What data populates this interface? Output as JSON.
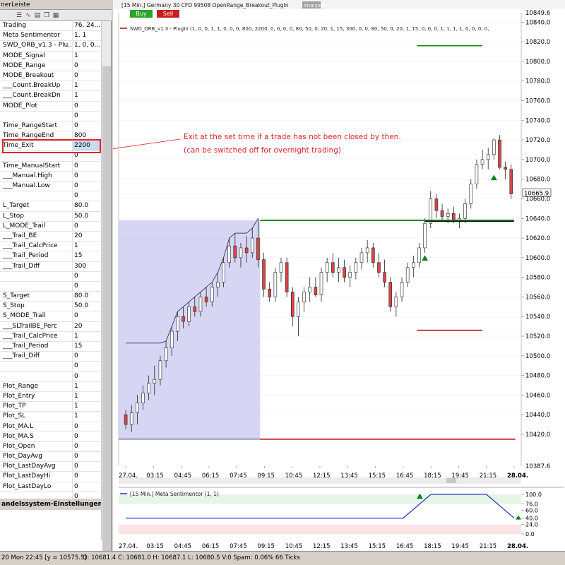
{
  "panel": {
    "title": "nerLeiste",
    "params": [
      {
        "k": "Trading",
        "v": "76, 24..."
      },
      {
        "k": "Meta Sentimentor",
        "v": "1, 1"
      },
      {
        "k": "SWD_ORB_v1.3 - Plu...",
        "v": "1, 0, 0..."
      },
      {
        "k": "MODE_Signal",
        "v": "1"
      },
      {
        "k": "MODE_Range",
        "v": "0"
      },
      {
        "k": "MODE_Breakout",
        "v": "0"
      },
      {
        "k": "___Count.BreakUp",
        "v": "1"
      },
      {
        "k": "___Count.BreakDn",
        "v": "1"
      },
      {
        "k": "MODE_Plot",
        "v": "0"
      },
      {
        "k": "",
        "v": "0"
      },
      {
        "k": "Time_RangeStart",
        "v": "0"
      },
      {
        "k": "Time_RangeEnd",
        "v": "800"
      },
      {
        "k": "Time_Exit",
        "v": "2200",
        "hl": true
      },
      {
        "k": "",
        "v": "0"
      },
      {
        "k": "Time_ManualStart",
        "v": "0"
      },
      {
        "k": "___Manual.High",
        "v": "0"
      },
      {
        "k": "___Manual.Low",
        "v": "0"
      },
      {
        "k": "",
        "v": "0"
      },
      {
        "k": "L_Target",
        "v": "80.0"
      },
      {
        "k": "L_Stop",
        "v": "50.0"
      },
      {
        "k": "L_MODE_Trail",
        "v": "0"
      },
      {
        "k": "___Trail_BE",
        "v": "20"
      },
      {
        "k": "___Trail_CalcPrice",
        "v": "1"
      },
      {
        "k": "___Trail_Period",
        "v": "15"
      },
      {
        "k": "___Trail_Diff",
        "v": "300"
      },
      {
        "k": "",
        "v": "0"
      },
      {
        "k": "",
        "v": "0"
      },
      {
        "k": "S_Target",
        "v": "80.0"
      },
      {
        "k": "S_Stop",
        "v": "50.0"
      },
      {
        "k": "S_MODE_Trail",
        "v": "0"
      },
      {
        "k": "___SLTrailBE_Perc",
        "v": "20"
      },
      {
        "k": "___Trail_CalcPrice",
        "v": "1"
      },
      {
        "k": "___Trail_Period",
        "v": "15"
      },
      {
        "k": "___Trail_Diff",
        "v": "0"
      },
      {
        "k": "",
        "v": "0"
      },
      {
        "k": "",
        "v": "0"
      },
      {
        "k": "Plot_Range",
        "v": "1"
      },
      {
        "k": "Plot_Entry",
        "v": "1"
      },
      {
        "k": "Plot_TP",
        "v": "1"
      },
      {
        "k": "Plot_SL",
        "v": "1"
      },
      {
        "k": "Plot_MA.L",
        "v": "0"
      },
      {
        "k": "Plot_MA.S",
        "v": "0"
      },
      {
        "k": "Plot_Open",
        "v": "0"
      },
      {
        "k": "Plot_DayAvg",
        "v": "0"
      },
      {
        "k": "Plot_LastDayAvg",
        "v": "0"
      },
      {
        "k": "Plot_LastDayHi",
        "v": "0"
      },
      {
        "k": "Plot_LastDayLo",
        "v": "0"
      },
      {
        "k": "",
        "v": "0"
      }
    ],
    "footer": "andelssystem-Einstellungen"
  },
  "chart_header": {
    "title": "[15 Min.] Germany 30 CFD   99508 OpenRange_Breakout_PlugIn",
    "analysen": "Analysen",
    "buy": "Buy",
    "sell": "Sell",
    "indicator": "SWD_ORB_v1.3 - PlugIn  (1, 0, 0, 1, 1, 0, 0, 0, 800, 2200, 0, 0, 0, 0, 80, 50, 0, 20, 1, 15, 300, 0, 0, 80, 50, 0, 20, 1, 15, 0, 0, 0, 1, 1, 1, 1, 0, 0, 0, 0,"
  },
  "annotation": {
    "line1": "Exit at the set time if a trade has not been closed by then.",
    "line2": "(can be switched off for overnight trading)"
  },
  "colors": {
    "bull": "#ffffff",
    "bear": "#d94545",
    "range_fill": "#c8c8f0",
    "green": "#0a8a0a",
    "red": "#b00000",
    "annotation": "#e0202a"
  },
  "chart_data": [
    {
      "type": "candlestick",
      "yticks": [
        10420,
        10440,
        10460,
        10480,
        10500,
        10520,
        10540,
        10560,
        10580,
        10600,
        10620,
        10640,
        10660,
        10680,
        10700,
        10720,
        10740,
        10760,
        10780,
        10800,
        10820,
        10840
      ],
      "ylim": [
        10387.6,
        10849.6
      ],
      "top_label": "10849.6",
      "bottom_label": "10387.6",
      "last_price": "10665.9",
      "xticks": [
        "27.04.",
        "03:15",
        "04:45",
        "06:15",
        "07:45",
        "09:15",
        "10:45",
        "12:15",
        "13:45",
        "15:15",
        "16:45",
        "18:15",
        "19:45",
        "21:15",
        "28.04."
      ],
      "candles": [
        [
          10440,
          10445,
          10425,
          10430
        ],
        [
          10430,
          10450,
          10422,
          10442
        ],
        [
          10442,
          10460,
          10430,
          10452
        ],
        [
          10452,
          10470,
          10445,
          10462
        ],
        [
          10462,
          10480,
          10455,
          10472
        ],
        [
          10472,
          10490,
          10460,
          10476
        ],
        [
          10476,
          10500,
          10470,
          10495
        ],
        [
          10495,
          10515,
          10488,
          10508
        ],
        [
          10508,
          10530,
          10500,
          10525
        ],
        [
          10525,
          10545,
          10515,
          10540
        ],
        [
          10540,
          10550,
          10528,
          10535
        ],
        [
          10535,
          10555,
          10530,
          10550
        ],
        [
          10550,
          10560,
          10540,
          10545
        ],
        [
          10545,
          10565,
          10540,
          10560
        ],
        [
          10560,
          10570,
          10550,
          10555
        ],
        [
          10555,
          10575,
          10550,
          10570
        ],
        [
          10570,
          10585,
          10560,
          10575
        ],
        [
          10575,
          10600,
          10570,
          10595
        ],
        [
          10595,
          10620,
          10590,
          10612
        ],
        [
          10612,
          10625,
          10595,
          10600
        ],
        [
          10600,
          10615,
          10590,
          10610
        ],
        [
          10610,
          10622,
          10595,
          10605
        ],
        [
          10605,
          10630,
          10600,
          10620
        ],
        [
          10620,
          10640,
          10590,
          10598
        ],
        [
          10598,
          10605,
          10560,
          10568
        ],
        [
          10568,
          10575,
          10555,
          10560
        ],
        [
          10560,
          10590,
          10555,
          10585
        ],
        [
          10585,
          10600,
          10575,
          10595
        ],
        [
          10595,
          10600,
          10560,
          10565
        ],
        [
          10565,
          10570,
          10530,
          10540
        ],
        [
          10540,
          10560,
          10520,
          10555
        ],
        [
          10555,
          10570,
          10545,
          10565
        ],
        [
          10565,
          10580,
          10555,
          10570
        ],
        [
          10570,
          10580,
          10560,
          10562
        ],
        [
          10562,
          10590,
          10555,
          10585
        ],
        [
          10585,
          10600,
          10575,
          10595
        ],
        [
          10595,
          10605,
          10580,
          10585
        ],
        [
          10585,
          10600,
          10575,
          10590
        ],
        [
          10590,
          10598,
          10575,
          10580
        ],
        [
          10580,
          10592,
          10570,
          10585
        ],
        [
          10585,
          10600,
          10578,
          10595
        ],
        [
          10595,
          10610,
          10588,
          10605
        ],
        [
          10605,
          10618,
          10595,
          10610
        ],
        [
          10610,
          10615,
          10590,
          10595
        ],
        [
          10595,
          10605,
          10580,
          10585
        ],
        [
          10585,
          10598,
          10570,
          10575
        ],
        [
          10575,
          10580,
          10545,
          10550
        ],
        [
          10550,
          10565,
          10540,
          10560
        ],
        [
          10560,
          10580,
          10555,
          10575
        ],
        [
          10575,
          10595,
          10570,
          10590
        ],
        [
          10590,
          10602,
          10580,
          10595
        ],
        [
          10595,
          10615,
          10590,
          10610
        ],
        [
          10610,
          10640,
          10605,
          10635
        ],
        [
          10635,
          10668,
          10630,
          10660
        ],
        [
          10660,
          10665,
          10640,
          10648
        ],
        [
          10648,
          10655,
          10638,
          10642
        ],
        [
          10642,
          10650,
          10635,
          10645
        ],
        [
          10645,
          10652,
          10635,
          10638
        ],
        [
          10638,
          10645,
          10630,
          10640
        ],
        [
          10640,
          10660,
          10635,
          10655
        ],
        [
          10655,
          10680,
          10650,
          10675
        ],
        [
          10675,
          10700,
          10670,
          10695
        ],
        [
          10695,
          10710,
          10690,
          10700
        ],
        [
          10700,
          10712,
          10690,
          10705
        ],
        [
          10705,
          10722,
          10700,
          10720
        ],
        [
          10720,
          10725,
          10690,
          10692
        ],
        [
          10692,
          10698,
          10680,
          10690
        ],
        [
          10690,
          10695,
          10660,
          10665
        ]
      ],
      "range_high": 10638,
      "range_low": 10415,
      "lines": [
        {
          "name": "target",
          "color": "green",
          "value": 10816
        },
        {
          "name": "entry",
          "color": "green",
          "value": 10638
        },
        {
          "name": "stop",
          "color": "red",
          "value": 10526
        },
        {
          "name": "range-low",
          "color": "red",
          "value": 10415
        }
      ]
    },
    {
      "type": "line",
      "title": "[15 Min.] Meta Sentimentor  (1, 1)",
      "yticks": [
        "100.0",
        "76.0",
        "60.0",
        "40.0",
        "24.0",
        "0.0"
      ],
      "ylim": [
        0,
        100
      ],
      "x": [
        "27.04.",
        "03:15",
        "04:45",
        "06:15",
        "07:45",
        "09:15",
        "10:45",
        "12:15",
        "13:45",
        "15:15",
        "16:45",
        "18:15",
        "19:45",
        "21:15",
        "28.04."
      ],
      "series": [
        {
          "values": [
            40,
            40,
            40,
            40,
            40,
            40,
            40,
            40,
            40,
            40,
            40,
            100,
            100,
            100,
            40
          ]
        }
      ]
    }
  ],
  "status": {
    "left": "20 Mon  22:45 [y = 10575.5]",
    "right": "O: 10681.4 C: 10681.0 H: 10687.1 L: 10680.5 V:0 Spam: 0.06% 66 Ticks"
  }
}
